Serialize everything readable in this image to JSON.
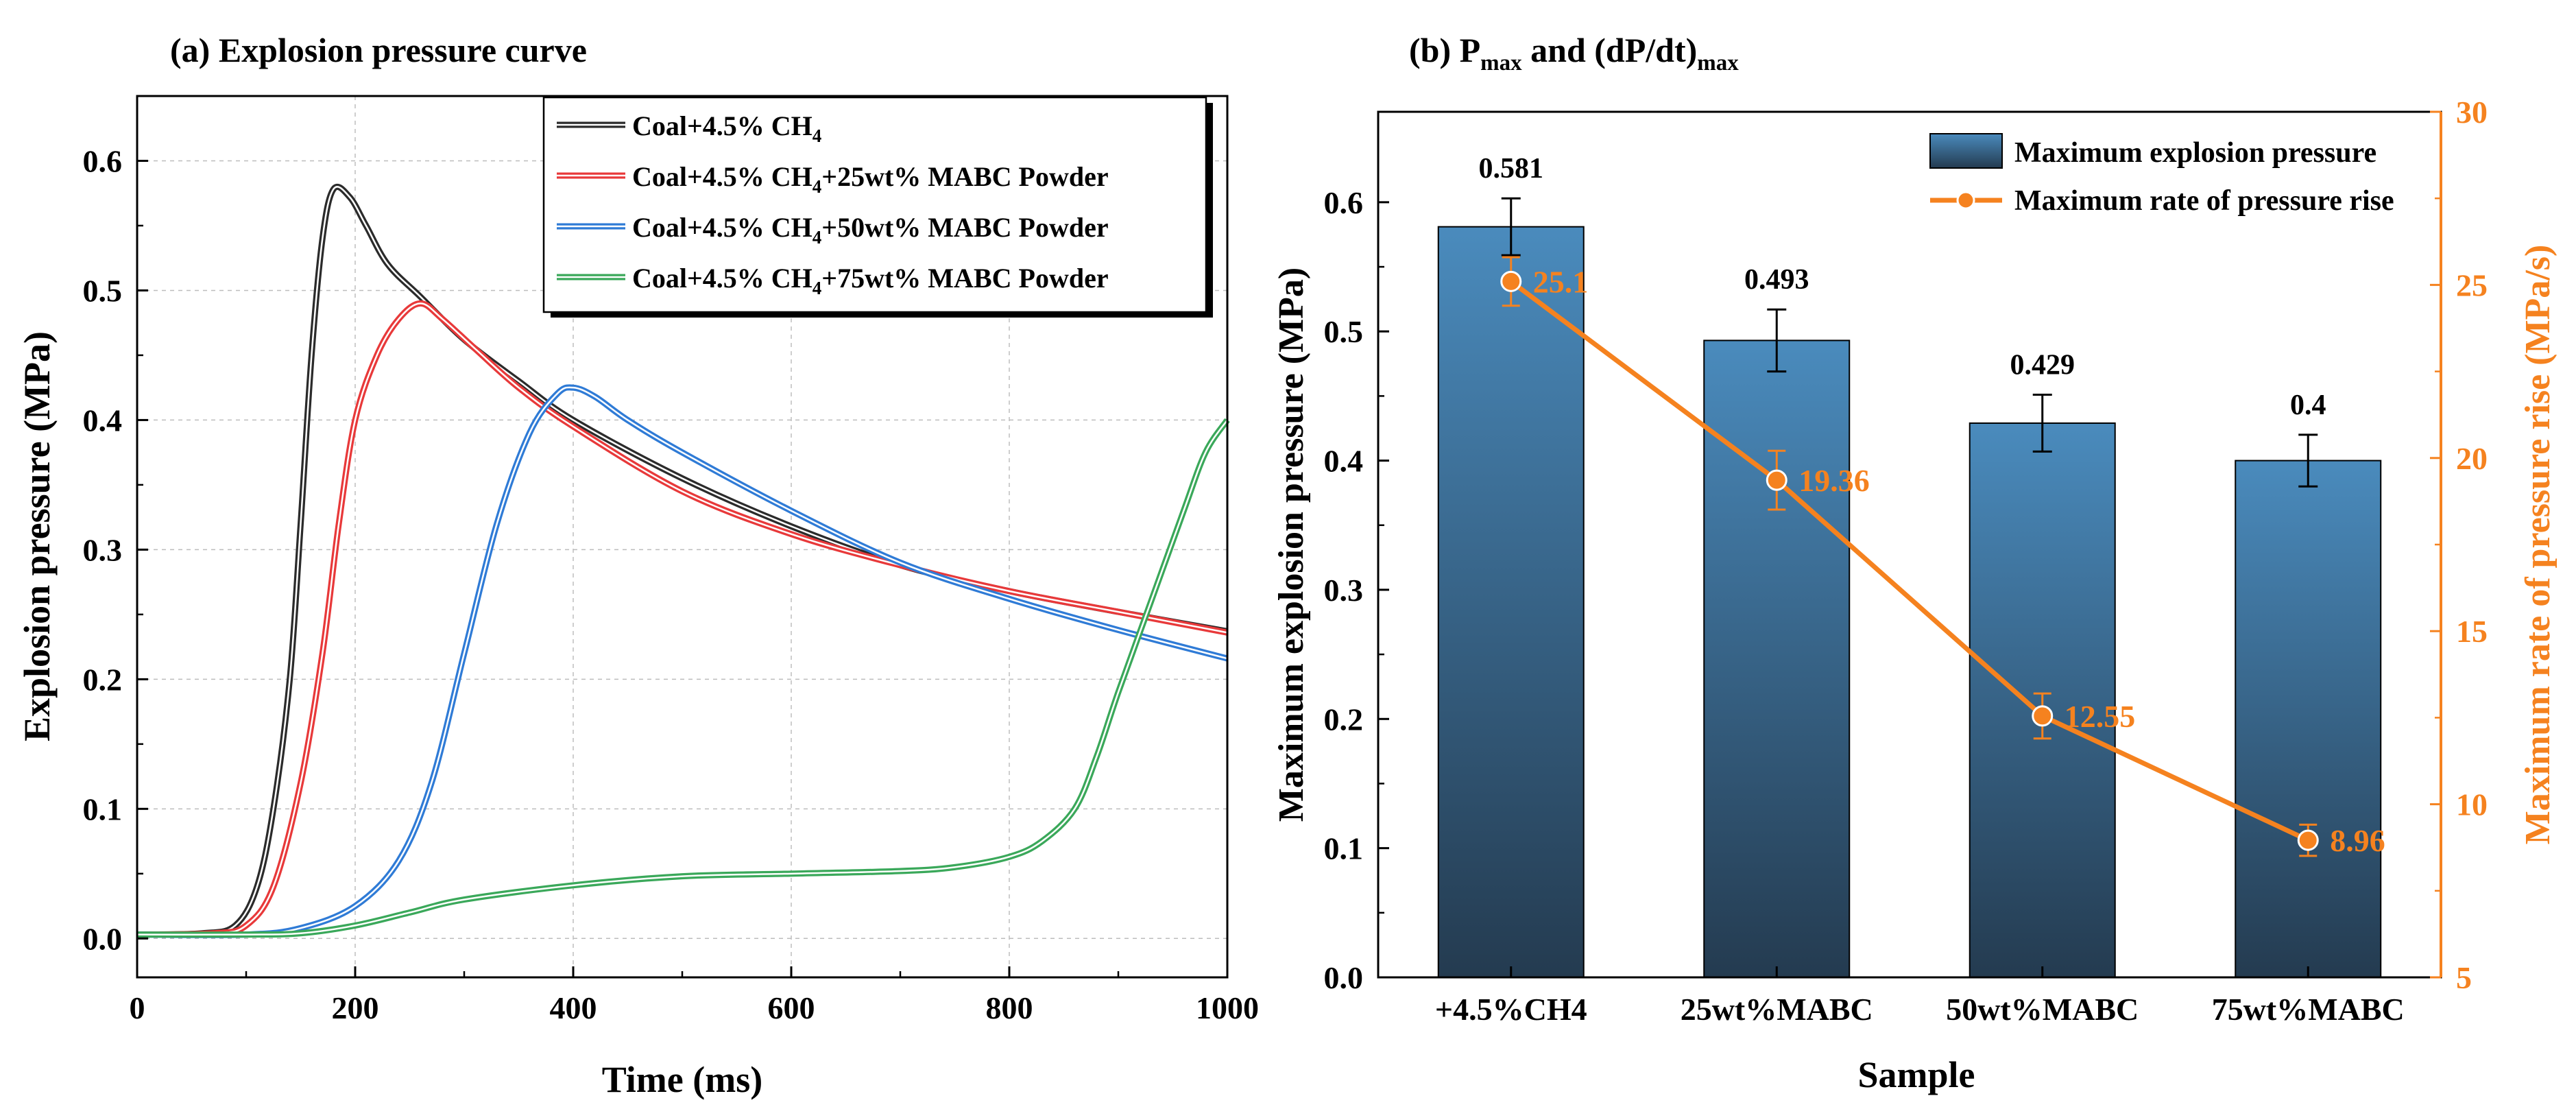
{
  "colors": {
    "black_series": "#2b2b2b",
    "red_series": "#e8393a",
    "blue_series": "#2f7bd6",
    "green_series": "#3aa85a",
    "bar_top": "#4a8bbd",
    "bar_bottom": "#243b50",
    "orange": "#f5821f",
    "grid": "#bdbdbd"
  },
  "chart_data": [
    {
      "type": "line",
      "title_prefix": "(a)",
      "title": "Explosion pressure curve",
      "xlabel": "Time (ms)",
      "ylabel": "Explosion pressure (MPa)",
      "xlim": [
        0,
        1000
      ],
      "ylim": [
        -0.03,
        0.65
      ],
      "xticks": [
        0,
        200,
        400,
        600,
        800,
        1000
      ],
      "yticks": [
        0.0,
        0.1,
        0.2,
        0.3,
        0.4,
        0.5,
        0.6
      ],
      "grid": true,
      "legend_position": "top-right",
      "series": [
        {
          "name": "Coal+4.5% CH4",
          "legend": {
            "base": "Coal+4.5% CH",
            "sub": "4",
            "tail": ""
          },
          "color_key": "black_series",
          "points": [
            [
              0,
              0.003
            ],
            [
              60,
              0.004
            ],
            [
              90,
              0.01
            ],
            [
              110,
              0.04
            ],
            [
              125,
              0.1
            ],
            [
              140,
              0.2
            ],
            [
              150,
              0.32
            ],
            [
              160,
              0.45
            ],
            [
              170,
              0.54
            ],
            [
              180,
              0.578
            ],
            [
              195,
              0.572
            ],
            [
              210,
              0.55
            ],
            [
              230,
              0.52
            ],
            [
              260,
              0.495
            ],
            [
              300,
              0.462
            ],
            [
              350,
              0.43
            ],
            [
              400,
              0.4
            ],
            [
              500,
              0.355
            ],
            [
              600,
              0.318
            ],
            [
              700,
              0.288
            ],
            [
              800,
              0.268
            ],
            [
              900,
              0.252
            ],
            [
              1000,
              0.237
            ]
          ]
        },
        {
          "name": "Coal+4.5% CH4+25wt% MABC Powder",
          "legend": {
            "base": "Coal+4.5% CH",
            "sub": "4",
            "tail": "+25wt% MABC Powder"
          },
          "color_key": "red_series",
          "points": [
            [
              0,
              0.003
            ],
            [
              70,
              0.004
            ],
            [
              100,
              0.01
            ],
            [
              125,
              0.04
            ],
            [
              150,
              0.12
            ],
            [
              170,
              0.22
            ],
            [
              185,
              0.32
            ],
            [
              200,
              0.4
            ],
            [
              220,
              0.45
            ],
            [
              240,
              0.478
            ],
            [
              260,
              0.49
            ],
            [
              280,
              0.478
            ],
            [
              310,
              0.455
            ],
            [
              350,
              0.425
            ],
            [
              400,
              0.395
            ],
            [
              500,
              0.345
            ],
            [
              600,
              0.312
            ],
            [
              700,
              0.288
            ],
            [
              800,
              0.268
            ],
            [
              900,
              0.252
            ],
            [
              1000,
              0.236
            ]
          ]
        },
        {
          "name": "Coal+4.5% CH4+50wt% MABC Powder",
          "legend": {
            "base": "Coal+4.5% CH",
            "sub": "4",
            "tail": "+50wt% MABC Powder"
          },
          "color_key": "blue_series",
          "points": [
            [
              0,
              0.003
            ],
            [
              100,
              0.003
            ],
            [
              150,
              0.008
            ],
            [
              200,
              0.025
            ],
            [
              240,
              0.06
            ],
            [
              270,
              0.12
            ],
            [
              300,
              0.22
            ],
            [
              330,
              0.32
            ],
            [
              360,
              0.39
            ],
            [
              385,
              0.42
            ],
            [
              400,
              0.425
            ],
            [
              420,
              0.418
            ],
            [
              450,
              0.4
            ],
            [
              500,
              0.375
            ],
            [
              600,
              0.33
            ],
            [
              700,
              0.29
            ],
            [
              800,
              0.262
            ],
            [
              900,
              0.238
            ],
            [
              1000,
              0.216
            ]
          ]
        },
        {
          "name": "Coal+4.5% CH4+75wt% MABC Powder",
          "legend": {
            "base": "Coal+4.5% CH",
            "sub": "4",
            "tail": "+75wt% MABC Powder"
          },
          "color_key": "green_series",
          "points": [
            [
              0,
              0.003
            ],
            [
              100,
              0.003
            ],
            [
              150,
              0.004
            ],
            [
              200,
              0.01
            ],
            [
              250,
              0.02
            ],
            [
              300,
              0.03
            ],
            [
              400,
              0.041
            ],
            [
              500,
              0.048
            ],
            [
              600,
              0.05
            ],
            [
              700,
              0.052
            ],
            [
              750,
              0.055
            ],
            [
              800,
              0.063
            ],
            [
              830,
              0.075
            ],
            [
              860,
              0.1
            ],
            [
              880,
              0.14
            ],
            [
              900,
              0.19
            ],
            [
              930,
              0.26
            ],
            [
              960,
              0.33
            ],
            [
              980,
              0.375
            ],
            [
              1000,
              0.4
            ]
          ]
        }
      ]
    },
    {
      "type": "bar",
      "title_prefix": "(b)",
      "title_parts": [
        "P",
        "max",
        " and (dP/dt)",
        "max"
      ],
      "xlabel": "Sample",
      "ylabel": "Maximum explosion pressure (MPa)",
      "y2label": "Maximum rate of pressure rise (MPa/s)",
      "categories": [
        "+4.5%CH4",
        "25wt%MABC",
        "50wt%MABC",
        "75wt%MABC"
      ],
      "ylim": [
        0,
        0.67
      ],
      "yticks": [
        0.0,
        0.1,
        0.2,
        0.3,
        0.4,
        0.5,
        0.6
      ],
      "y2lim": [
        5,
        30
      ],
      "y2ticks": [
        5,
        10,
        15,
        20,
        25,
        30
      ],
      "legend_position": "top-right",
      "series": [
        {
          "name": "Maximum explosion pressure",
          "type": "bar",
          "values": [
            0.581,
            0.493,
            0.429,
            0.4
          ],
          "labels": [
            "0.581",
            "0.493",
            "0.429",
            "0.4"
          ],
          "errors": [
            0.022,
            0.024,
            0.022,
            0.02
          ]
        },
        {
          "name": "Maximum rate of pressure rise",
          "type": "line",
          "axis": "right",
          "values": [
            25.1,
            19.36,
            12.55,
            8.96
          ],
          "labels": [
            "25.1",
            "19.36",
            "12.55",
            "8.96"
          ],
          "errors": [
            0.7,
            0.85,
            0.65,
            0.45
          ]
        }
      ]
    }
  ]
}
